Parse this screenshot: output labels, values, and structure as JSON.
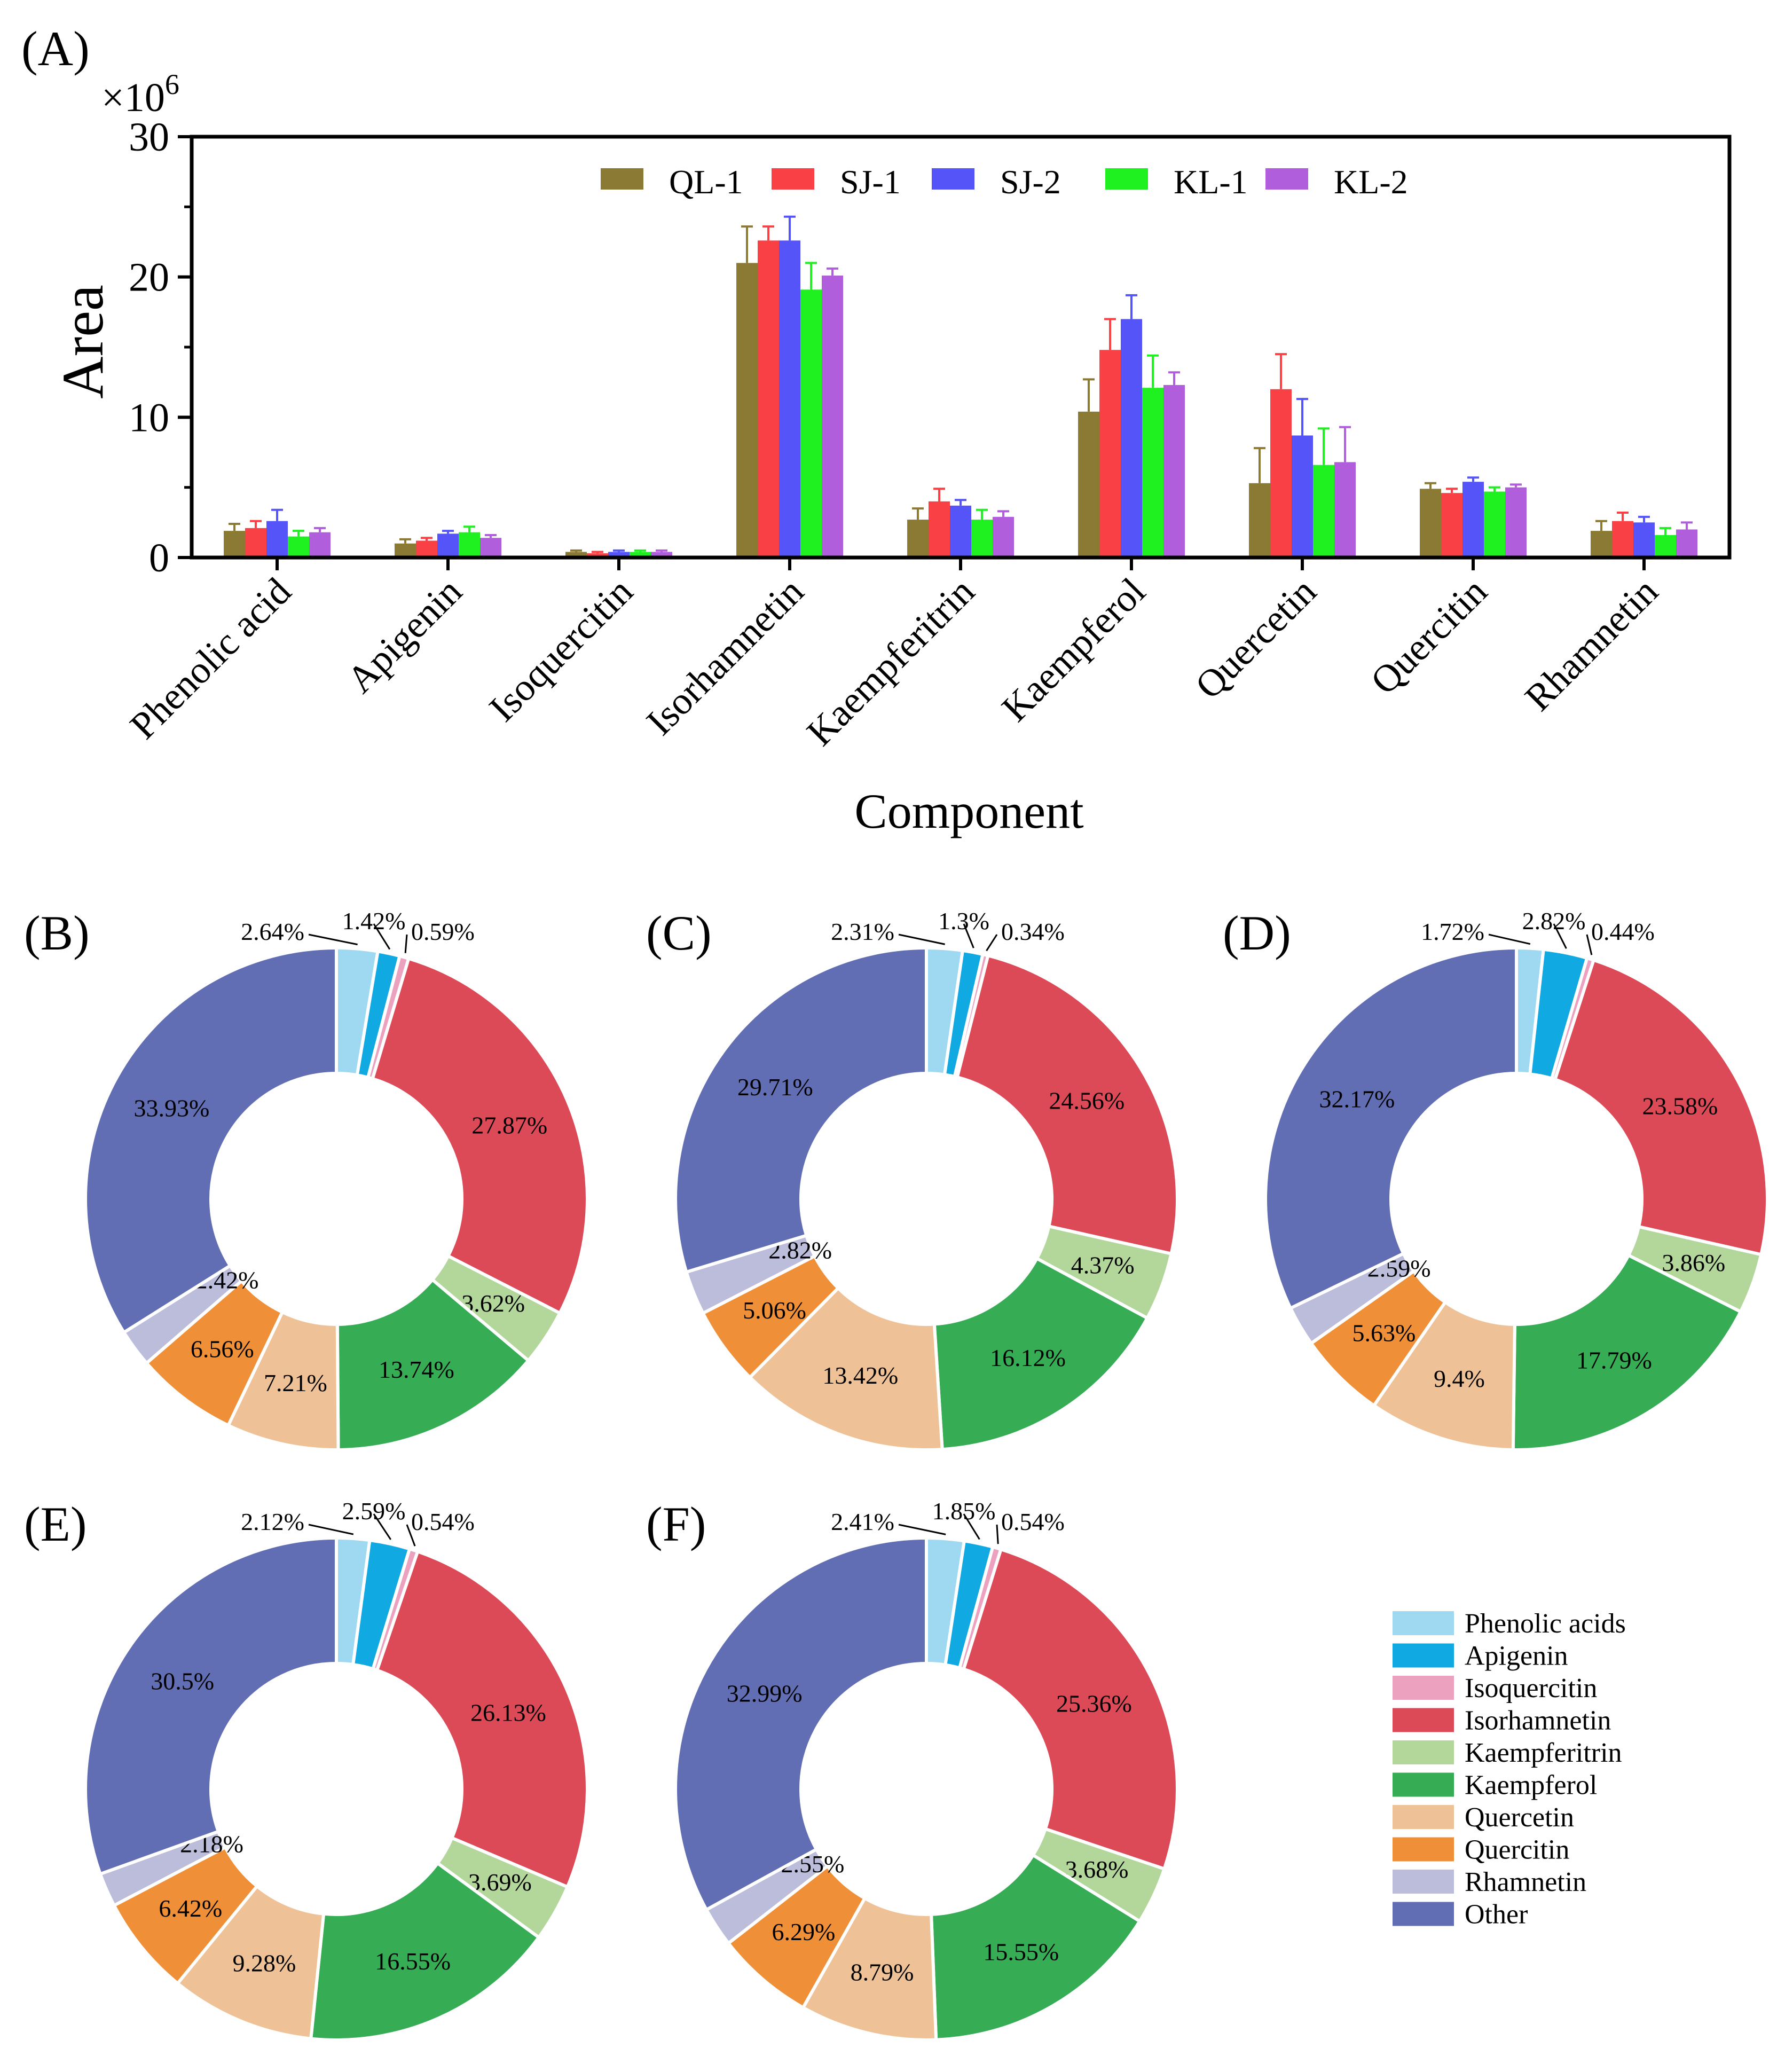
{
  "chart_data": [
    {
      "type": "bar",
      "panel_label": "(A)",
      "multiplier_label": "×10",
      "multiplier_exp": "6",
      "ylabel": "Area",
      "xlabel": "Component",
      "ylim": [
        0,
        30
      ],
      "yticks": [
        "0",
        "10",
        "20",
        "30"
      ],
      "categories": [
        "Phenolic acid",
        "Apigenin",
        "Isoquercitin",
        "Isorhamnetin",
        "Kaempferitrin",
        "Kaempferol",
        "Quercetin",
        "Quercitin",
        "Rhamnetin"
      ],
      "series": [
        {
          "name": "QL-1",
          "color": "#8B7A34",
          "values": [
            1.9,
            1.0,
            0.4,
            21.0,
            2.7,
            10.4,
            5.3,
            4.9,
            1.9
          ],
          "errors": [
            0.5,
            0.3,
            0.1,
            2.6,
            0.8,
            2.3,
            2.5,
            0.4,
            0.7
          ]
        },
        {
          "name": "SJ-1",
          "color": "#F84045",
          "values": [
            2.1,
            1.2,
            0.3,
            22.6,
            4.0,
            14.8,
            12.0,
            4.6,
            2.6
          ],
          "errors": [
            0.5,
            0.2,
            0.1,
            1.0,
            0.9,
            2.2,
            2.5,
            0.3,
            0.6
          ]
        },
        {
          "name": "SJ-2",
          "color": "#5454F8",
          "values": [
            2.6,
            1.7,
            0.4,
            22.6,
            3.7,
            17.0,
            8.7,
            5.4,
            2.5
          ],
          "errors": [
            0.8,
            0.2,
            0.1,
            1.7,
            0.4,
            1.7,
            2.6,
            0.3,
            0.4
          ]
        },
        {
          "name": "KL-1",
          "color": "#1FF01F",
          "values": [
            1.5,
            1.8,
            0.4,
            19.1,
            2.7,
            12.1,
            6.6,
            4.7,
            1.6
          ],
          "errors": [
            0.4,
            0.4,
            0.1,
            1.9,
            0.7,
            2.3,
            2.6,
            0.3,
            0.5
          ]
        },
        {
          "name": "KL-2",
          "color": "#B05EDC",
          "values": [
            1.8,
            1.4,
            0.4,
            20.1,
            2.9,
            12.3,
            6.8,
            5.0,
            2.0
          ],
          "errors": [
            0.3,
            0.2,
            0.1,
            0.5,
            0.4,
            0.9,
            2.5,
            0.2,
            0.5
          ]
        }
      ]
    },
    {
      "type": "pie",
      "panel_label": "(B)",
      "values": [
        2.64,
        1.42,
        0.59,
        27.87,
        3.62,
        13.74,
        7.21,
        6.56,
        2.42,
        33.93
      ],
      "labels": [
        "2.64%",
        "1.42%",
        "0.59%",
        "27.87%",
        "3.62%",
        "13.74%",
        "7.21%",
        "6.56%",
        "2.42%",
        "33.93%"
      ]
    },
    {
      "type": "pie",
      "panel_label": "(C)",
      "values": [
        2.31,
        1.3,
        0.34,
        24.56,
        4.37,
        16.12,
        13.42,
        5.06,
        2.82,
        29.71
      ],
      "labels": [
        "2.31%",
        "1.3%",
        "0.34%",
        "24.56%",
        "4.37%",
        "16.12%",
        "13.42%",
        "5.06%",
        "2.82%",
        "29.71%"
      ]
    },
    {
      "type": "pie",
      "panel_label": "(D)",
      "values": [
        1.72,
        2.82,
        0.44,
        23.58,
        3.86,
        17.79,
        9.4,
        5.63,
        2.59,
        32.17
      ],
      "labels": [
        "1.72%",
        "2.82%",
        "0.44%",
        "23.58%",
        "3.86%",
        "17.79%",
        "9.4%",
        "5.63%",
        "2.59%",
        "32.17%"
      ]
    },
    {
      "type": "pie",
      "panel_label": "(E)",
      "values": [
        2.12,
        2.59,
        0.54,
        26.13,
        3.69,
        16.55,
        9.28,
        6.42,
        2.18,
        30.5
      ],
      "labels": [
        "2.12%",
        "2.59%",
        "0.54%",
        "26.13%",
        "3.69%",
        "16.55%",
        "9.28%",
        "6.42%",
        "2.18%",
        "30.5%"
      ]
    },
    {
      "type": "pie",
      "panel_label": "(F)",
      "values": [
        2.41,
        1.85,
        0.54,
        25.36,
        3.68,
        15.55,
        8.79,
        6.29,
        2.55,
        32.99
      ],
      "labels": [
        "2.41%",
        "1.85%",
        "0.54%",
        "25.36%",
        "3.68%",
        "15.55%",
        "8.79%",
        "6.29%",
        "2.55%",
        "32.99%"
      ]
    }
  ],
  "pie_legend": {
    "items": [
      {
        "label": "Phenolic acids",
        "color": "#9ED8F1"
      },
      {
        "label": "Apigenin",
        "color": "#10A9E1"
      },
      {
        "label": "Isoquercitin",
        "color": "#ECA2BF"
      },
      {
        "label": "Isorhamnetin",
        "color": "#DC4A58"
      },
      {
        "label": "Kaempferitrin",
        "color": "#B3D69B"
      },
      {
        "label": "Kaempferol",
        "color": "#36AC55"
      },
      {
        "label": "Quercetin",
        "color": "#EEC296"
      },
      {
        "label": "Quercitin",
        "color": "#EF8F37"
      },
      {
        "label": "Rhamnetin",
        "color": "#BCBDDB"
      },
      {
        "label": "Other",
        "color": "#626EB4"
      }
    ]
  }
}
